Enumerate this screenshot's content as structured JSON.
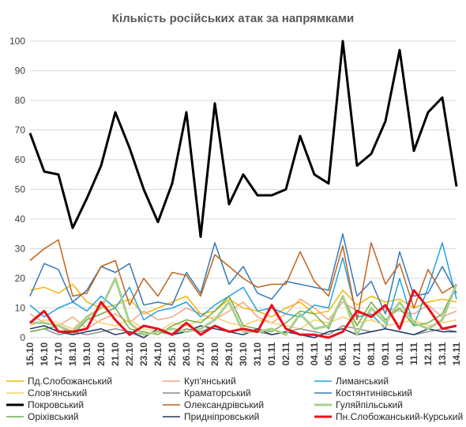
{
  "chart_data": {
    "type": "line",
    "title": "Кількість російських атак за напрямками",
    "xlabel": "",
    "ylabel": "",
    "ylim": [
      0,
      100
    ],
    "yticks": [
      0,
      10,
      20,
      30,
      40,
      50,
      60,
      70,
      80,
      90,
      100
    ],
    "grid": "horizontal",
    "legend_position": "bottom",
    "categories": [
      "15.10",
      "16.10",
      "17.10",
      "18.10",
      "19.10",
      "20.10",
      "21.10",
      "22.10",
      "23.10",
      "24.10",
      "25.10",
      "26.10",
      "27.10",
      "28.10",
      "29.10",
      "30.10",
      "31.10",
      "01.11",
      "02.11",
      "03.11",
      "04.11",
      "05.11",
      "06.11",
      "07.11",
      "08.11",
      "09.11",
      "10.11",
      "11.11",
      "12.11",
      "13.11",
      "14.11"
    ],
    "series": [
      {
        "name": "Пд.Слобожанський",
        "color": "#f2b705",
        "width": 1.5,
        "values": [
          16,
          17,
          15,
          18,
          12,
          10,
          11,
          13,
          8,
          10,
          12,
          14,
          8,
          9,
          13,
          10,
          9,
          7,
          10,
          12,
          8,
          9,
          16,
          11,
          14,
          12,
          13,
          10,
          12,
          13,
          12
        ]
      },
      {
        "name": "Куп'янський",
        "color": "#f4a582",
        "width": 1.5,
        "values": [
          8,
          5,
          4,
          7,
          3,
          6,
          8,
          5,
          9,
          6,
          7,
          10,
          8,
          6,
          9,
          12,
          7,
          5,
          8,
          13,
          10,
          6,
          12,
          9,
          7,
          10,
          9,
          8,
          11,
          7,
          9
        ]
      },
      {
        "name": "Лиманський",
        "color": "#1fa3e0",
        "width": 1.5,
        "values": [
          11,
          7,
          10,
          12,
          9,
          14,
          10,
          17,
          6,
          9,
          10,
          12,
          7,
          11,
          14,
          17,
          9,
          10,
          8,
          7,
          11,
          10,
          27,
          7,
          8,
          3,
          20,
          4,
          17,
          32,
          13
        ]
      },
      {
        "name": "Слов'янський",
        "color": "#f7cf6b",
        "width": 1.5,
        "values": [
          4,
          6,
          5,
          3,
          7,
          5,
          4,
          6,
          3,
          2,
          5,
          4,
          6,
          7,
          5,
          4,
          6,
          5,
          4,
          3,
          6,
          5,
          7,
          5,
          6,
          4,
          5,
          6,
          4,
          5,
          6
        ]
      },
      {
        "name": "Краматорський",
        "color": "#8c8c8c",
        "width": 1.5,
        "values": [
          2,
          3,
          1,
          2,
          1,
          2,
          3,
          2,
          1,
          2,
          1,
          3,
          2,
          4,
          2,
          3,
          2,
          1,
          2,
          3,
          2,
          1,
          4,
          3,
          2,
          3,
          2,
          1,
          2,
          3,
          2
        ]
      },
      {
        "name": "Костянтинівський",
        "color": "#3778b8",
        "width": 1.5,
        "values": [
          14,
          25,
          23,
          12,
          16,
          24,
          22,
          25,
          11,
          12,
          11,
          22,
          15,
          32,
          18,
          24,
          15,
          13,
          19,
          18,
          17,
          16,
          35,
          14,
          19,
          8,
          29,
          14,
          15,
          24,
          15
        ]
      },
      {
        "name": "Покровський",
        "color": "#000000",
        "width": 3,
        "values": [
          69,
          56,
          55,
          37,
          47,
          58,
          76,
          64,
          50,
          39,
          52,
          76,
          34,
          79,
          45,
          55,
          48,
          48,
          50,
          68,
          55,
          52,
          100,
          58,
          62,
          73,
          97,
          63,
          76,
          81,
          51
        ]
      },
      {
        "name": "Олександрівський",
        "color": "#c0641c",
        "width": 1.5,
        "values": [
          26,
          30,
          33,
          14,
          15,
          24,
          26,
          11,
          20,
          14,
          22,
          21,
          14,
          28,
          24,
          20,
          17,
          18,
          18,
          29,
          19,
          14,
          31,
          6,
          32,
          18,
          25,
          10,
          23,
          15,
          18
        ]
      },
      {
        "name": "Гуляйпільський",
        "color": "#a8d08d",
        "width": 3,
        "values": [
          5,
          5,
          4,
          2,
          7,
          10,
          20,
          5,
          1,
          2,
          3,
          2,
          3,
          6,
          12,
          2,
          2,
          3,
          1,
          8,
          3,
          4,
          14,
          1,
          10,
          5,
          12,
          5,
          3,
          6,
          18
        ]
      },
      {
        "name": "Оріхівський",
        "color": "#70ad47",
        "width": 1.5,
        "values": [
          2,
          3,
          4,
          1,
          6,
          8,
          10,
          3,
          2,
          1,
          4,
          6,
          5,
          9,
          14,
          4,
          3,
          2,
          5,
          9,
          8,
          3,
          14,
          4,
          12,
          6,
          10,
          4,
          5,
          8,
          18
        ]
      },
      {
        "name": "Придніпровський",
        "color": "#203864",
        "width": 1.5,
        "values": [
          3,
          4,
          2,
          1,
          2,
          3,
          1,
          2,
          0,
          3,
          1,
          2,
          4,
          3,
          2,
          1,
          3,
          1,
          2,
          1,
          0,
          2,
          3,
          1,
          2,
          3,
          2,
          1,
          3,
          2,
          2
        ]
      },
      {
        "name": "Пн.Слобожанський-Курський",
        "color": "#e8101c",
        "width": 3,
        "values": [
          5,
          9,
          2,
          2,
          3,
          12,
          6,
          1,
          4,
          3,
          1,
          5,
          1,
          4,
          2,
          3,
          2,
          11,
          3,
          1,
          1,
          0,
          2,
          9,
          7,
          11,
          3,
          16,
          10,
          3,
          4
        ]
      }
    ]
  }
}
